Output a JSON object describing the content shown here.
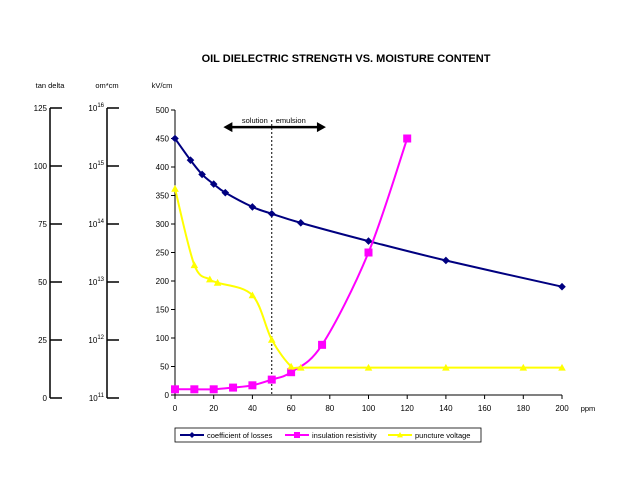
{
  "chart_data": {
    "type": "line",
    "title": "OIL DIELECTRIC STRENGTH VS. MOISTURE CONTENT",
    "xlabel": "ppm",
    "ylabel": "kV/cm",
    "xlim": [
      0,
      200
    ],
    "ylim": [
      0,
      500
    ],
    "x_ticks": [
      "0",
      "20",
      "40",
      "60",
      "80",
      "100",
      "120",
      "140",
      "160",
      "180",
      "200"
    ],
    "y_ticks": [
      "0",
      "50",
      "100",
      "150",
      "200",
      "250",
      "300",
      "350",
      "400",
      "450",
      "500"
    ],
    "secondary_axes": [
      {
        "label": "tan delta",
        "ticks": [
          "0",
          "25",
          "50",
          "75",
          "100",
          "125"
        ]
      },
      {
        "label": "om*cm",
        "ticks": [
          {
            "base": "10",
            "exp": "11"
          },
          {
            "base": "10",
            "exp": "12"
          },
          {
            "base": "10",
            "exp": "13"
          },
          {
            "base": "10",
            "exp": "14"
          },
          {
            "base": "10",
            "exp": "15"
          },
          {
            "base": "10",
            "exp": "16"
          }
        ]
      }
    ],
    "annotations": {
      "divider_x": 50,
      "left_label": "solution",
      "right_label": "emulsion",
      "arrow_from": 25,
      "arrow_to": 78,
      "arrow_y": 470
    },
    "series": [
      {
        "name": "coefficient of losses",
        "color": "#000080",
        "marker": "diamond",
        "x": [
          0,
          8,
          14,
          20,
          26,
          40,
          50,
          65,
          100,
          140,
          200
        ],
        "y": [
          450,
          412,
          387,
          370,
          355,
          330,
          318,
          302,
          270,
          236,
          190
        ]
      },
      {
        "name": "insulation resistivity",
        "color": "#ff00ff",
        "marker": "square",
        "x": [
          0,
          10,
          20,
          30,
          40,
          50,
          60,
          76,
          100,
          120
        ],
        "y": [
          10,
          10,
          10,
          13,
          17,
          27,
          40,
          88,
          250,
          450
        ]
      },
      {
        "name": "puncture voltage",
        "color": "#ffff00",
        "marker": "triangle",
        "x": [
          0,
          10,
          18,
          22,
          40,
          50,
          60,
          65,
          100,
          140,
          180,
          200
        ],
        "y": [
          362,
          228,
          203,
          197,
          175,
          97,
          50,
          48,
          48,
          48,
          48,
          48
        ]
      }
    ]
  }
}
